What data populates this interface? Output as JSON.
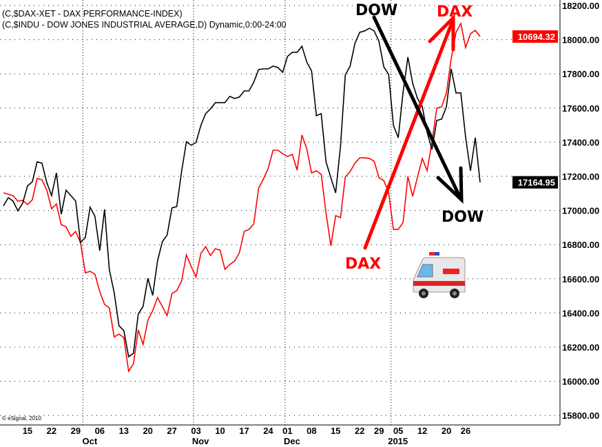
{
  "chart_data": {
    "type": "line",
    "legend": [
      "(C,$DAX-XET - DAX PERFORMANCE-INDEX)",
      "(C,$INDU - DOW JONES INDUSTRIAL AVERAGE,D) Dynamic,0:00-24:00"
    ],
    "copyright": "© eSignal, 2010",
    "ylim": [
      15800,
      18200
    ],
    "yticks": [
      "18200.00",
      "18000.00",
      "17800.00",
      "17600.00",
      "17400.00",
      "17200.00",
      "17000.00",
      "16800.00",
      "16600.00",
      "16400.00",
      "16200.00",
      "16000.00",
      "15800.00"
    ],
    "grid": true,
    "y_axis_side": "right",
    "xticks": [
      {
        "label": "15",
        "date": "2014-09-15"
      },
      {
        "label": "22",
        "date": "2014-09-22"
      },
      {
        "label": "29",
        "date": "2014-09-29"
      },
      {
        "label": "06",
        "date": "2014-10-06"
      },
      {
        "label": "13",
        "date": "2014-10-13"
      },
      {
        "label": "20",
        "date": "2014-10-20"
      },
      {
        "label": "27",
        "date": "2014-10-27"
      },
      {
        "label": "03",
        "date": "2014-11-03"
      },
      {
        "label": "10",
        "date": "2014-11-10"
      },
      {
        "label": "17",
        "date": "2014-11-17"
      },
      {
        "label": "24",
        "date": "2014-11-24"
      },
      {
        "label": "01",
        "date": "2014-12-01"
      },
      {
        "label": "08",
        "date": "2014-12-08"
      },
      {
        "label": "15",
        "date": "2014-12-15"
      },
      {
        "label": "22",
        "date": "2014-12-22"
      },
      {
        "label": "29",
        "date": "2014-12-29"
      },
      {
        "label": "05",
        "date": "2015-01-05"
      },
      {
        "label": "12",
        "date": "2015-01-12"
      },
      {
        "label": "20",
        "date": "2015-01-20"
      },
      {
        "label": "26",
        "date": "2015-01-26"
      }
    ],
    "months": [
      {
        "label": "Oct",
        "date": "2014-10-01"
      },
      {
        "label": "Nov",
        "date": "2014-11-03"
      },
      {
        "label": "Dec",
        "date": "2014-12-01"
      },
      {
        "label": "2015",
        "date": "2015-01-02"
      }
    ],
    "dates": [
      "2014-09-08",
      "2014-09-09",
      "2014-09-10",
      "2014-09-11",
      "2014-09-12",
      "2014-09-15",
      "2014-09-16",
      "2014-09-17",
      "2014-09-18",
      "2014-09-19",
      "2014-09-22",
      "2014-09-23",
      "2014-09-24",
      "2014-09-25",
      "2014-09-26",
      "2014-09-29",
      "2014-09-30",
      "2014-10-01",
      "2014-10-02",
      "2014-10-03",
      "2014-10-06",
      "2014-10-07",
      "2014-10-08",
      "2014-10-09",
      "2014-10-10",
      "2014-10-13",
      "2014-10-14",
      "2014-10-15",
      "2014-10-16",
      "2014-10-17",
      "2014-10-20",
      "2014-10-21",
      "2014-10-22",
      "2014-10-23",
      "2014-10-24",
      "2014-10-27",
      "2014-10-28",
      "2014-10-29",
      "2014-10-30",
      "2014-10-31",
      "2014-11-03",
      "2014-11-04",
      "2014-11-05",
      "2014-11-06",
      "2014-11-07",
      "2014-11-10",
      "2014-11-11",
      "2014-11-12",
      "2014-11-13",
      "2014-11-14",
      "2014-11-17",
      "2014-11-18",
      "2014-11-19",
      "2014-11-20",
      "2014-11-21",
      "2014-11-24",
      "2014-11-25",
      "2014-11-26",
      "2014-11-28",
      "2014-12-01",
      "2014-12-02",
      "2014-12-03",
      "2014-12-04",
      "2014-12-05",
      "2014-12-08",
      "2014-12-09",
      "2014-12-10",
      "2014-12-11",
      "2014-12-12",
      "2014-12-15",
      "2014-12-16",
      "2014-12-17",
      "2014-12-18",
      "2014-12-19",
      "2014-12-22",
      "2014-12-23",
      "2014-12-24",
      "2014-12-26",
      "2014-12-29",
      "2014-12-30",
      "2014-12-31",
      "2015-01-02",
      "2015-01-05",
      "2015-01-06",
      "2015-01-07",
      "2015-01-08",
      "2015-01-09",
      "2015-01-12",
      "2015-01-13",
      "2015-01-14",
      "2015-01-15",
      "2015-01-16",
      "2015-01-20",
      "2015-01-21",
      "2015-01-22",
      "2015-01-23",
      "2015-01-26",
      "2015-01-27",
      "2015-01-28",
      "2015-01-29"
    ],
    "series": [
      {
        "name": "$INDU",
        "color": "#000000",
        "last_label": "17164.95",
        "values": [
          17027,
          17075,
          17055,
          16998,
          17043,
          17144,
          17168,
          17285,
          17277,
          17164,
          17087,
          17220,
          16978,
          17119,
          17087,
          17055,
          16813,
          16841,
          17019,
          16966,
          16765,
          17007,
          16652,
          16519,
          16325,
          16297,
          16144,
          16164,
          16394,
          16438,
          16603,
          16503,
          16704,
          16817,
          16857,
          17015,
          17023,
          17228,
          17402,
          17382,
          17398,
          17498,
          17567,
          17595,
          17631,
          17631,
          17631,
          17668,
          17656,
          17664,
          17700,
          17700,
          17752,
          17825,
          17829,
          17829,
          17845,
          17837,
          17809,
          17902,
          17926,
          17926,
          17962,
          17869,
          17817,
          17555,
          17567,
          17285,
          17192,
          17103,
          17373,
          17793,
          17845,
          17978,
          18043,
          18051,
          18067,
          18051,
          17990,
          17841,
          17797,
          17498,
          17426,
          17692,
          17898,
          17744,
          17656,
          17607,
          17458,
          17357,
          17527,
          17535,
          17607,
          17829,
          17688,
          17688,
          17426,
          17232,
          17426,
          17164.95
        ]
      },
      {
        "name": "$DAX-XET",
        "color": "#ff0000",
        "last_label": "10694.32",
        "values": [
          9707,
          9698,
          9689,
          9654,
          9659,
          9633,
          9663,
          9798,
          9789,
          9724,
          9606,
          9637,
          9506,
          9493,
          9432,
          9463,
          9393,
          9202,
          9211,
          9193,
          9084,
          9002,
          8980,
          8797,
          8815,
          8793,
          8580,
          8628,
          8841,
          8750,
          8902,
          8963,
          9045,
          8989,
          8932,
          9071,
          9089,
          9150,
          9315,
          9241,
          9176,
          9324,
          9367,
          9311,
          9354,
          9345,
          9224,
          9254,
          9276,
          9328,
          9463,
          9476,
          9511,
          9737,
          9794,
          9863,
          9976,
          9976,
          9954,
          9937,
          9950,
          9850,
          10072,
          9985,
          9833,
          9846,
          9824,
          9580,
          9372,
          9563,
          9550,
          9807,
          9841,
          9894,
          9928,
          9928,
          9924,
          9907,
          9802,
          9785,
          9711,
          9476,
          9476,
          9519,
          9811,
          9685,
          9807,
          9924,
          9846,
          10028,
          10242,
          10250,
          10337,
          10555,
          10720,
          10777,
          10624,
          10712,
          10733,
          10694.32
        ]
      }
    ],
    "annotations": {
      "dow_top": "DOW",
      "dax_top": "DAX",
      "dax_bottom": "DAX",
      "dow_bottom": "DOW",
      "ambulance": "ambulance-icon"
    }
  }
}
